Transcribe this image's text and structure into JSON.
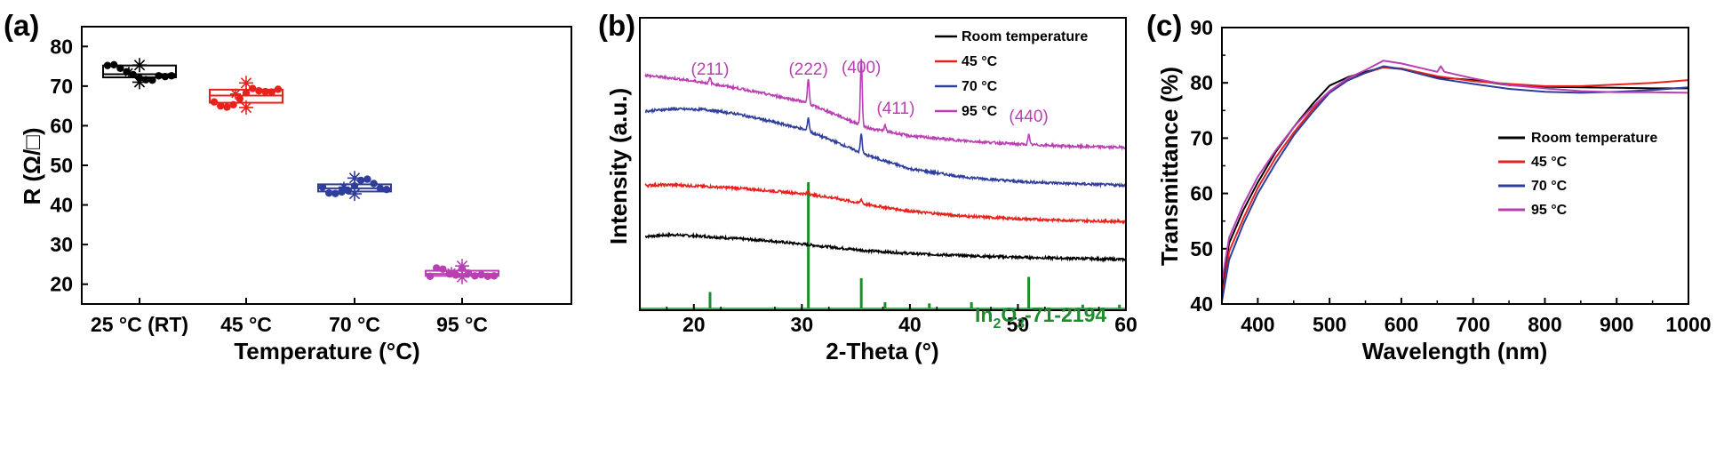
{
  "chart_data": [
    {
      "panel": "(a)",
      "type": "box",
      "xlabel": "Temperature (°C)",
      "ylabel": "R (Ω/□)",
      "ylim": [
        15,
        85
      ],
      "yticks": [
        20,
        30,
        40,
        50,
        60,
        70,
        80
      ],
      "categories": [
        "25 °C (RT)",
        "45 °C",
        "70 °C",
        "95 °C"
      ],
      "colors": [
        "#000000",
        "#e8211d",
        "#2f3d9c",
        "#b93fb3"
      ],
      "boxes": [
        {
          "category": "25 °C (RT)",
          "q1": 72.2,
          "median": 73.0,
          "q3": 75.2,
          "min": 71.0,
          "max": 75.5,
          "points": [
            75.2,
            75.4,
            74.5,
            73.6,
            72.9,
            72.0,
            71.6,
            71.5,
            72.6,
            72.4,
            72.6
          ],
          "outliers": [
            71.0,
            75.3,
            73.5
          ]
        },
        {
          "category": "45 °C",
          "q1": 65.8,
          "median": 67.6,
          "q3": 69.1,
          "min": 64.6,
          "max": 70.8,
          "points": [
            66.0,
            65.0,
            64.7,
            65.3,
            66.8,
            68.3,
            69.4,
            68.8,
            68.6,
            68.5,
            69.2
          ],
          "outliers": [
            70.8,
            64.6,
            68.0
          ]
        },
        {
          "category": "70 °C",
          "q1": 43.4,
          "median": 44.2,
          "q3": 45.2,
          "min": 42.8,
          "max": 46.8,
          "points": [
            44.5,
            43.0,
            42.9,
            43.3,
            43.6,
            44.8,
            46.2,
            46.5,
            45.4,
            44.2,
            43.9
          ],
          "outliers": [
            46.8,
            42.8,
            44.5
          ]
        },
        {
          "category": "95 °C",
          "q1": 22.1,
          "median": 22.6,
          "q3": 23.4,
          "min": 21.8,
          "max": 24.6,
          "points": [
            22.0,
            24.1,
            23.8,
            22.6,
            22.3,
            24.0,
            22.8,
            22.1,
            22.4,
            22.0,
            22.1
          ],
          "outliers": [
            24.6,
            21.8,
            23.0
          ]
        }
      ]
    },
    {
      "panel": "(b)",
      "type": "line",
      "xlabel": "2-Theta (°)",
      "ylabel": "Intensity (a.u.)",
      "xlim": [
        15,
        60
      ],
      "xticks": [
        20,
        30,
        40,
        50,
        60
      ],
      "legend": [
        "Room temperature",
        "45 °C",
        "70 °C",
        "95 °C"
      ],
      "legend_position": "top-right",
      "peak_labels": [
        {
          "text": "(211)",
          "x": 21.5
        },
        {
          "text": "(222)",
          "x": 30.6
        },
        {
          "text": "(400)",
          "x": 35.5
        },
        {
          "text": "(411)",
          "x": 37.7
        },
        {
          "text": "(440)",
          "x": 51.0
        }
      ],
      "reference_label": {
        "main": "In",
        "sub1": "2",
        "mid": "O",
        "sub2": "3",
        "rest": "-71-2194"
      },
      "reference_color": "#1f8c2e",
      "reference_lines": [
        {
          "x": 21.5,
          "h": 0.13
        },
        {
          "x": 30.6,
          "h": 1.0
        },
        {
          "x": 35.5,
          "h": 0.24
        },
        {
          "x": 37.7,
          "h": 0.05
        },
        {
          "x": 41.8,
          "h": 0.04
        },
        {
          "x": 45.7,
          "h": 0.05
        },
        {
          "x": 51.0,
          "h": 0.25
        },
        {
          "x": 56.0,
          "h": 0.03
        },
        {
          "x": 59.4,
          "h": 0.03
        }
      ],
      "series": [
        {
          "name": "Room temperature",
          "color": "#000000",
          "points": [
            [
              15.5,
              40.2
            ],
            [
              18,
              40.5
            ],
            [
              21,
              40.2
            ],
            [
              24,
              39.8
            ],
            [
              27,
              39.4
            ],
            [
              30,
              38.8
            ],
            [
              33,
              38.2
            ],
            [
              36,
              37.6
            ],
            [
              40,
              37.1
            ],
            [
              45,
              36.7
            ],
            [
              50,
              36.4
            ],
            [
              55,
              36.2
            ],
            [
              60,
              36.0
            ]
          ],
          "peaks": []
        },
        {
          "name": "45 °C",
          "color": "#e8211d",
          "points": [
            [
              15.5,
              49.5
            ],
            [
              18,
              49.6
            ],
            [
              21,
              49.3
            ],
            [
              24,
              49.0
            ],
            [
              27,
              48.5
            ],
            [
              30,
              48.0
            ],
            [
              33,
              47.2
            ],
            [
              36,
              46.0
            ],
            [
              40,
              44.8
            ],
            [
              45,
              43.9
            ],
            [
              50,
              43.4
            ],
            [
              55,
              43.1
            ],
            [
              60,
              42.9
            ]
          ],
          "peaks": [
            {
              "x": 30.6,
              "h": 0.8
            },
            {
              "x": 35.5,
              "h": 0.8
            }
          ]
        },
        {
          "name": "70 °C",
          "color": "#2f3d9c",
          "points": [
            [
              15.5,
              63.0
            ],
            [
              18,
              63.4
            ],
            [
              21,
              63.3
            ],
            [
              24,
              62.5
            ],
            [
              27,
              61.2
            ],
            [
              30,
              59.8
            ],
            [
              33,
              57.5
            ],
            [
              36,
              55.0
            ],
            [
              40,
              52.5
            ],
            [
              45,
              51.0
            ],
            [
              50,
              50.2
            ],
            [
              55,
              49.8
            ],
            [
              60,
              49.5
            ]
          ],
          "peaks": [
            {
              "x": 30.6,
              "h": 2.5
            },
            {
              "x": 35.5,
              "h": 3.5
            }
          ]
        },
        {
          "name": "95 °C",
          "color": "#b93fb3",
          "points": [
            [
              15.5,
              69.5
            ],
            [
              18,
              69.0
            ],
            [
              21,
              68.2
            ],
            [
              24,
              67.2
            ],
            [
              27,
              66.0
            ],
            [
              30,
              64.8
            ],
            [
              33,
              62.5
            ],
            [
              36,
              60.0
            ],
            [
              40,
              58.5
            ],
            [
              45,
              57.6
            ],
            [
              50,
              57.0
            ],
            [
              55,
              56.6
            ],
            [
              60,
              56.4
            ]
          ],
          "peaks": [
            {
              "x": 21.5,
              "h": 1.0
            },
            {
              "x": 30.6,
              "h": 4.5
            },
            {
              "x": 35.5,
              "h": 12
            },
            {
              "x": 37.7,
              "h": 1.0
            },
            {
              "x": 51.0,
              "h": 1.8
            }
          ]
        }
      ]
    },
    {
      "panel": "(c)",
      "type": "line",
      "xlabel": "Wavelength (nm)",
      "ylabel": "Transmittance (%)",
      "xlim": [
        350,
        1000
      ],
      "ylim": [
        40,
        90
      ],
      "xticks": [
        400,
        500,
        600,
        700,
        800,
        900,
        1000
      ],
      "yticks": [
        40,
        50,
        60,
        70,
        80,
        90
      ],
      "legend": [
        "Room temperature",
        "45 °C",
        "70 °C",
        "95 °C"
      ],
      "legend_position": "center-right",
      "series": [
        {
          "name": "Room temperature",
          "color": "#000000",
          "points": [
            [
              350,
              43
            ],
            [
              360,
              51
            ],
            [
              380,
              57
            ],
            [
              400,
              62
            ],
            [
              425,
              67.5
            ],
            [
              450,
              72
            ],
            [
              475,
              76
            ],
            [
              500,
              79.5
            ],
            [
              525,
              81
            ],
            [
              550,
              82
            ],
            [
              575,
              82.8
            ],
            [
              600,
              82.5
            ],
            [
              650,
              81
            ],
            [
              700,
              80.5
            ],
            [
              750,
              79.6
            ],
            [
              800,
              79.3
            ],
            [
              850,
              79.2
            ],
            [
              900,
              79.1
            ],
            [
              950,
              79.0
            ],
            [
              1000,
              79.0
            ]
          ]
        },
        {
          "name": "45 °C",
          "color": "#e8211d",
          "points": [
            [
              350,
              41
            ],
            [
              360,
              49.5
            ],
            [
              380,
              55.5
            ],
            [
              400,
              61
            ],
            [
              425,
              66.5
            ],
            [
              450,
              71
            ],
            [
              475,
              75
            ],
            [
              500,
              78.5
            ],
            [
              525,
              80.5
            ],
            [
              550,
              81.8
            ],
            [
              575,
              82.8
            ],
            [
              600,
              82.6
            ],
            [
              650,
              81.2
            ],
            [
              700,
              80.3
            ],
            [
              750,
              79.8
            ],
            [
              800,
              79.4
            ],
            [
              850,
              79.4
            ],
            [
              900,
              79.7
            ],
            [
              950,
              80.0
            ],
            [
              1000,
              80.5
            ]
          ]
        },
        {
          "name": "70 °C",
          "color": "#2f3d9c",
          "points": [
            [
              350,
              40.5
            ],
            [
              360,
              48
            ],
            [
              380,
              54.5
            ],
            [
              400,
              60
            ],
            [
              425,
              65.5
            ],
            [
              450,
              70.5
            ],
            [
              475,
              74.5
            ],
            [
              500,
              78.2
            ],
            [
              525,
              80.4
            ],
            [
              550,
              81.8
            ],
            [
              575,
              83
            ],
            [
              600,
              82.5
            ],
            [
              650,
              80.8
            ],
            [
              700,
              79.8
            ],
            [
              750,
              78.9
            ],
            [
              800,
              78.4
            ],
            [
              850,
              78.2
            ],
            [
              900,
              78.4
            ],
            [
              950,
              78.7
            ],
            [
              1000,
              79.2
            ]
          ]
        },
        {
          "name": "95 °C",
          "color": "#b93fb3",
          "points": [
            [
              350,
              44
            ],
            [
              360,
              52
            ],
            [
              380,
              58
            ],
            [
              400,
              63
            ],
            [
              425,
              67.8
            ],
            [
              450,
              72
            ],
            [
              475,
              75.5
            ],
            [
              500,
              78.5
            ],
            [
              525,
              80.8
            ],
            [
              550,
              82.3
            ],
            [
              575,
              84
            ],
            [
              600,
              83.5
            ],
            [
              650,
              82
            ],
            [
              655,
              83
            ],
            [
              660,
              82
            ],
            [
              700,
              80.8
            ],
            [
              750,
              79.6
            ],
            [
              800,
              79.0
            ],
            [
              850,
              78.5
            ],
            [
              900,
              78.3
            ],
            [
              950,
              78.3
            ],
            [
              1000,
              78.2
            ]
          ]
        }
      ]
    }
  ]
}
